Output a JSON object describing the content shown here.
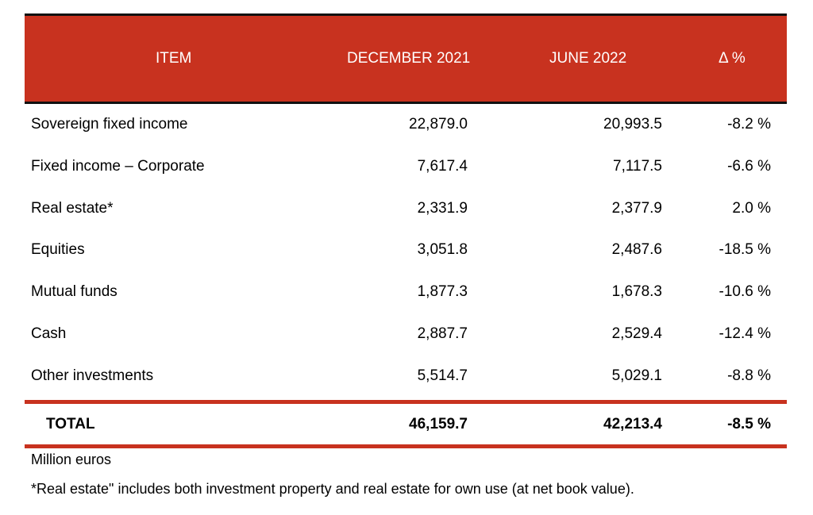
{
  "table": {
    "headers": {
      "item": "ITEM",
      "december_2021": "DECEMBER 2021",
      "june_2022": "JUNE 2022",
      "delta": "Δ %"
    },
    "rows": [
      {
        "item": "Sovereign fixed income",
        "december_2021": "22,879.0",
        "june_2022": "20,993.5",
        "delta": "-8.2 %"
      },
      {
        "item": "Fixed income – Corporate",
        "december_2021": "7,617.4",
        "june_2022": "7,117.5",
        "delta": "-6.6 %"
      },
      {
        "item": "Real estate*",
        "december_2021": "2,331.9",
        "june_2022": "2,377.9",
        "delta": "2.0 %"
      },
      {
        "item": "Equities",
        "december_2021": "3,051.8",
        "june_2022": "2,487.6",
        "delta": "-18.5 %"
      },
      {
        "item": "Mutual funds",
        "december_2021": "1,877.3",
        "june_2022": "1,678.3",
        "delta": "-10.6 %"
      },
      {
        "item": "Cash",
        "december_2021": "2,887.7",
        "june_2022": "2,529.4",
        "delta": "-12.4 %"
      },
      {
        "item": "Other investments",
        "december_2021": "5,514.7",
        "june_2022": "5,029.1",
        "delta": "-8.8 %"
      }
    ],
    "total": {
      "item": "TOTAL",
      "december_2021": "46,159.7",
      "june_2022": "42,213.4",
      "delta": "-8.5 %"
    }
  },
  "notes": {
    "units": "Million euros",
    "footnote": "*Real estate\" includes both investment property and real estate for own use (at net book value)."
  },
  "colors": {
    "header_background": "#c8321f",
    "header_text": "#ffffff",
    "rule_red": "#c8321f",
    "rule_dark": "#111111"
  }
}
